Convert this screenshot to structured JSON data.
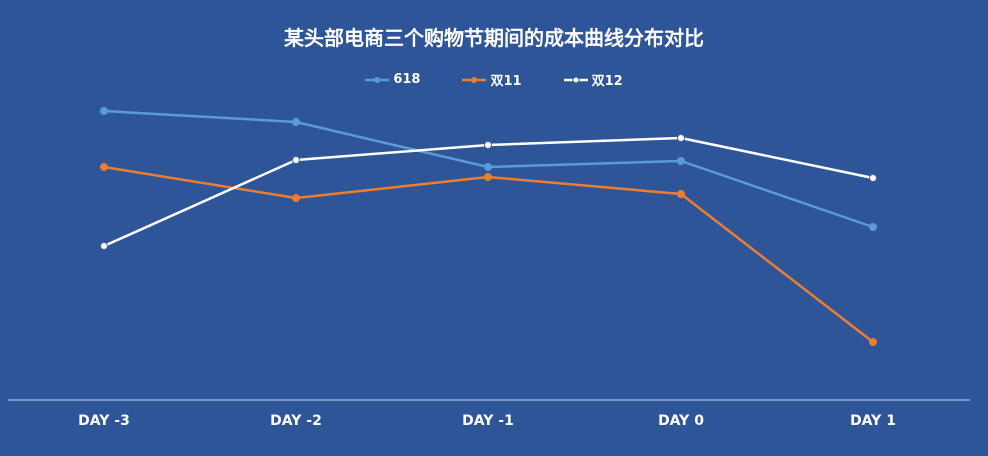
{
  "chart_data": {
    "type": "line",
    "title": "某头部电商三个购物节期间的成本曲线分布对比",
    "categories": [
      "DAY -3",
      "DAY -2",
      "DAY -1",
      "DAY 0",
      "DAY 1"
    ],
    "series": [
      {
        "name": "618",
        "color": "#5b9bd5",
        "values": [
          111,
          122,
          167,
          161,
          227
        ]
      },
      {
        "name": "双11",
        "color": "#ed7d31",
        "values": [
          167,
          198,
          177,
          194,
          342
        ]
      },
      {
        "name": "双12",
        "color": "#ffffff",
        "values": [
          246,
          160,
          145,
          138,
          178
        ]
      }
    ],
    "y_inverted_scale": true,
    "ylim": [
      400,
      0
    ],
    "legend_position": "top",
    "grid": false,
    "background": "#2e5597",
    "axis_color": "#c9d4e8"
  }
}
